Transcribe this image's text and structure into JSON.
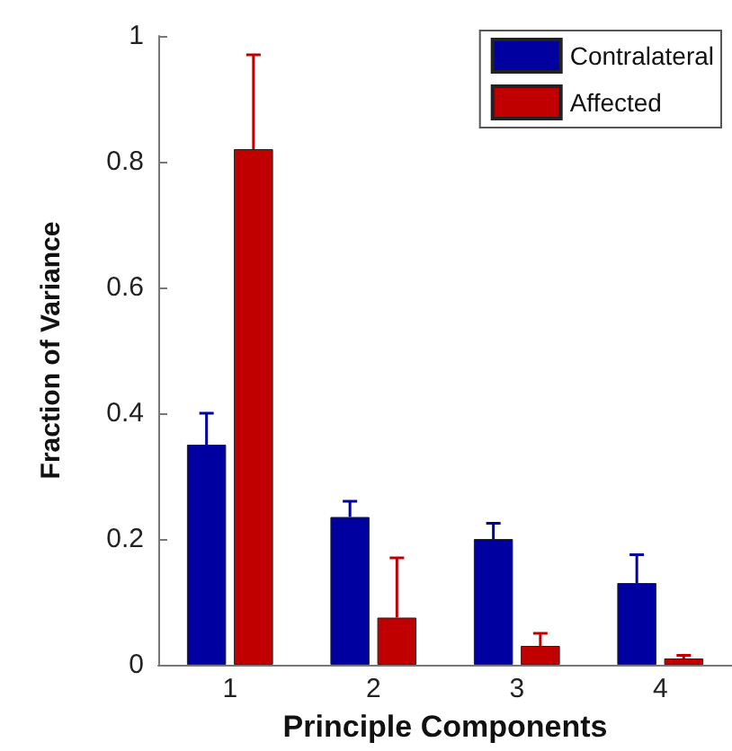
{
  "chart_data": {
    "type": "bar",
    "xlabel": "Principle Components",
    "ylabel": "Fraction of Variance",
    "categories": [
      "1",
      "2",
      "3",
      "4"
    ],
    "series": [
      {
        "name": "Contralateral",
        "color": "#0000a0",
        "values": [
          0.35,
          0.235,
          0.2,
          0.13
        ],
        "errors": [
          [
            0.35,
            0.4
          ],
          [
            0.235,
            0.26
          ],
          [
            0.2,
            0.225
          ],
          [
            0.13,
            0.175
          ]
        ]
      },
      {
        "name": "Affected",
        "color": "#c00000",
        "values": [
          0.82,
          0.075,
          0.03,
          0.01
        ],
        "errors": [
          [
            0.82,
            0.97
          ],
          [
            0.075,
            0.17
          ],
          [
            0.03,
            0.05
          ],
          [
            0.01,
            0.015
          ]
        ]
      }
    ],
    "ylim": [
      0,
      1
    ],
    "yticks": [
      0,
      0.2,
      0.4,
      0.6,
      0.8,
      1
    ],
    "grid": false,
    "legend": "top right"
  }
}
